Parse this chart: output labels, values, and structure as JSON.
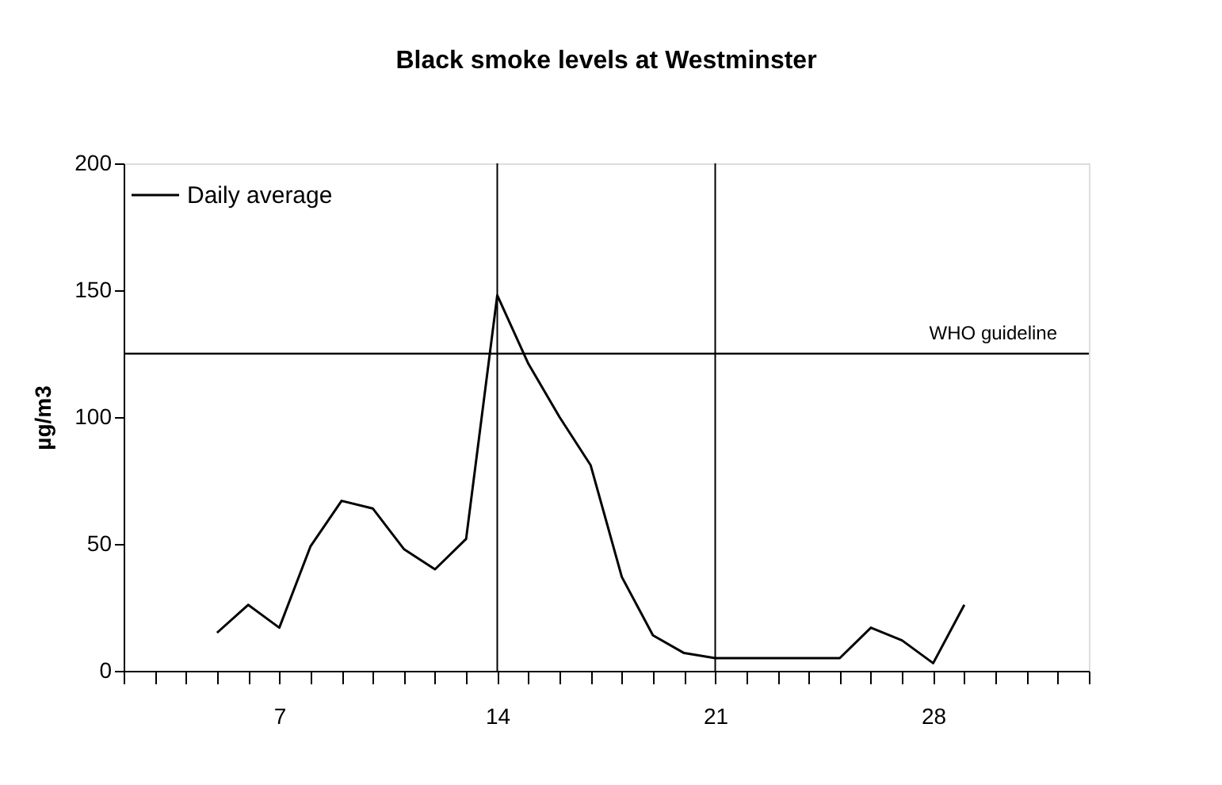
{
  "chart_data": {
    "type": "line",
    "title": "Black smoke levels at Westminster",
    "ylabel": "µg/m3",
    "x": [
      5,
      6,
      7,
      8,
      9,
      10,
      11,
      12,
      13,
      14,
      15,
      16,
      17,
      18,
      19,
      20,
      21,
      22,
      23,
      24,
      25,
      26,
      27,
      28,
      29
    ],
    "series": [
      {
        "name": "Daily average",
        "color": "#000000",
        "values": [
          15,
          26,
          17,
          49,
          67,
          64,
          48,
          40,
          52,
          148,
          121,
          100,
          81,
          37,
          14,
          7,
          5,
          5,
          5,
          5,
          5,
          17,
          12,
          3,
          26
        ]
      }
    ],
    "xlim": [
      2,
      33
    ],
    "xticks": [
      {
        "value": 2,
        "label": null
      },
      {
        "value": 3,
        "label": null
      },
      {
        "value": 4,
        "label": null
      },
      {
        "value": 5,
        "label": null
      },
      {
        "value": 6,
        "label": null
      },
      7,
      {
        "value": 8,
        "label": null
      },
      {
        "value": 9,
        "label": null
      },
      {
        "value": 10,
        "label": null
      },
      {
        "value": 11,
        "label": null
      },
      {
        "value": 12,
        "label": null
      },
      {
        "value": 13,
        "label": null
      },
      14,
      {
        "value": 15,
        "label": null
      },
      {
        "value": 16,
        "label": null
      },
      {
        "value": 17,
        "label": null
      },
      {
        "value": 18,
        "label": null
      },
      {
        "value": 19,
        "label": null
      },
      {
        "value": 20,
        "label": null
      },
      21,
      {
        "value": 22,
        "label": null
      },
      {
        "value": 23,
        "label": null
      },
      {
        "value": 24,
        "label": null
      },
      {
        "value": 25,
        "label": null
      },
      {
        "value": 26,
        "label": null
      },
      {
        "value": 27,
        "label": null
      },
      28,
      {
        "value": 29,
        "label": null
      },
      {
        "value": 30,
        "label": null
      },
      {
        "value": 31,
        "label": null
      },
      {
        "value": 32,
        "label": null
      },
      {
        "value": 33,
        "label": null
      }
    ],
    "ylim": [
      0,
      200
    ],
    "yticks": [
      0,
      50,
      100,
      150,
      200
    ],
    "ref_lines": [
      {
        "axis": "y",
        "value": 125,
        "label": "WHO guideline",
        "color": "#000000"
      },
      {
        "axis": "x",
        "value": 14,
        "label": null,
        "color": "#000000"
      },
      {
        "axis": "x",
        "value": 21,
        "label": null,
        "color": "#000000"
      }
    ],
    "grid": false,
    "legend": "top left",
    "marker": "none",
    "line_style": "solid"
  }
}
